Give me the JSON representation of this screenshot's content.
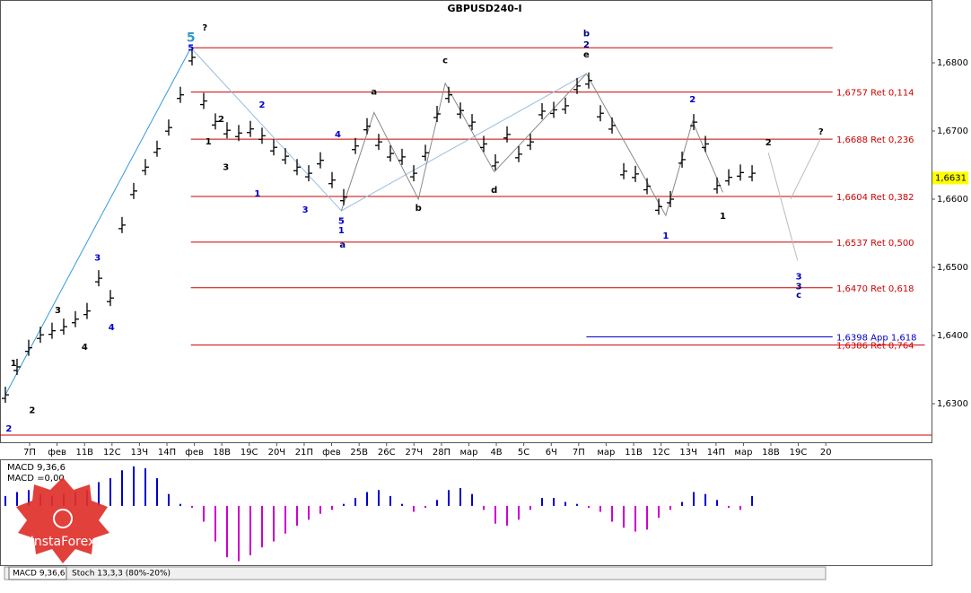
{
  "title": "GBPUSD240-I",
  "watermark": "InstaForex",
  "tabs": [
    "MACD 9,36,6",
    "Stoch 13,3,3 (80%-20%)"
  ],
  "chart_data": [
    {
      "type": "price",
      "color": "#000000",
      "values": [
        1.6313,
        1.6354,
        1.6382,
        1.6401,
        1.6407,
        1.6413,
        1.6424,
        1.6436,
        1.6484,
        1.6455,
        1.6562,
        1.6612,
        1.6647,
        1.6674,
        1.6705,
        1.6753,
        1.6808,
        1.6744,
        1.6714,
        1.6701,
        1.6697,
        1.6703,
        1.6693,
        1.6676,
        1.6663,
        1.6647,
        1.6638,
        1.6657,
        1.6628,
        1.6603,
        1.6678,
        1.6707,
        1.6684,
        1.6667,
        1.6662,
        1.6638,
        1.6668,
        1.6725,
        1.6753,
        1.673,
        1.6713,
        1.6681,
        1.6654,
        1.6695,
        1.6666,
        1.6684,
        1.6729,
        1.6731,
        1.6737,
        1.6766,
        1.6774,
        1.6726,
        1.6708,
        1.6641,
        1.6637,
        1.6619,
        1.6589,
        1.66,
        1.6658,
        1.6713,
        1.6681,
        1.662,
        1.6632,
        1.6639,
        1.6638
      ],
      "xlim": [
        -0.46,
        79.38
      ],
      "ylim": [
        1.62434,
        1.68921
      ],
      "yticks": [
        {
          "value": 1.63,
          "label": "1,6300"
        },
        {
          "value": 1.64,
          "label": "1,6400"
        },
        {
          "value": 1.65,
          "label": "1,6500"
        },
        {
          "value": 1.66,
          "label": "1,6600"
        },
        {
          "value": 1.67,
          "label": "1,6700"
        },
        {
          "value": 1.68,
          "label": "1,6800"
        }
      ],
      "xticks": [
        {
          "value": 2.08,
          "label": "7П"
        },
        {
          "value": 4.43,
          "label": "фев"
        },
        {
          "value": 6.79,
          "label": "11В"
        },
        {
          "value": 9.14,
          "label": "12С"
        },
        {
          "value": 11.49,
          "label": "13Ч"
        },
        {
          "value": 13.85,
          "label": "14П"
        },
        {
          "value": 16.2,
          "label": "фев"
        },
        {
          "value": 18.55,
          "label": "18В"
        },
        {
          "value": 20.9,
          "label": "19С"
        },
        {
          "value": 23.26,
          "label": "20Ч"
        },
        {
          "value": 25.61,
          "label": "21П"
        },
        {
          "value": 27.96,
          "label": "фев"
        },
        {
          "value": 30.32,
          "label": "25В"
        },
        {
          "value": 32.67,
          "label": "26С"
        },
        {
          "value": 35.02,
          "label": "27Ч"
        },
        {
          "value": 37.38,
          "label": "28П"
        },
        {
          "value": 39.73,
          "label": "мар"
        },
        {
          "value": 42.08,
          "label": "4В"
        },
        {
          "value": 44.43,
          "label": "5С"
        },
        {
          "value": 46.79,
          "label": "6Ч"
        },
        {
          "value": 49.14,
          "label": "7П"
        },
        {
          "value": 51.49,
          "label": "мар"
        },
        {
          "value": 53.85,
          "label": "11В"
        },
        {
          "value": 56.2,
          "label": "12С"
        },
        {
          "value": 58.55,
          "label": "13Ч"
        },
        {
          "value": 60.91,
          "label": "14П"
        },
        {
          "value": 63.26,
          "label": "мар"
        },
        {
          "value": 65.61,
          "label": "18В"
        },
        {
          "value": 67.96,
          "label": "19С"
        },
        {
          "value": 70.32,
          "label": "20"
        }
      ],
      "current_price": {
        "value": 1.6631,
        "label": "1,6631"
      },
      "levels": [
        {
          "value": 1.6822,
          "color": "#cc0000",
          "from": 15.9,
          "to": 70.9
        },
        {
          "value": 1.6757,
          "label": "1,6757 Ret 0,114",
          "color": "#cc0000",
          "from": 15.9,
          "to": 70.9
        },
        {
          "value": 1.6688,
          "label": "1,6688 Ret 0,236",
          "color": "#cc0000",
          "from": 15.9,
          "to": 70.9
        },
        {
          "value": 1.6604,
          "label": "1,6604 Ret 0,382",
          "color": "#cc0000",
          "from": 15.9,
          "to": 70.9
        },
        {
          "value": 1.6537,
          "label": "1,6537 Ret 0,500",
          "color": "#cc0000",
          "from": 15.9,
          "to": 70.9
        },
        {
          "value": 1.647,
          "label": "1,6470 Ret 0,618",
          "color": "#cc0000",
          "from": 15.9,
          "to": 70.9
        },
        {
          "value": 1.6398,
          "label": "1,6398 App 1,618",
          "color": "#0000cc",
          "from": 49.8,
          "to": 70.9
        },
        {
          "value": 1.6386,
          "label": "1,6386 Ret 0,764",
          "color": "#cc0000",
          "from": 15.9,
          "to": 78.8
        },
        {
          "value": 1.6254,
          "color": "#cc0000",
          "from": -0.46,
          "to": 79.38
        }
      ],
      "trendlines": [
        {
          "color": "#3399dd",
          "points": [
            [
              0,
              1.6313
            ],
            [
              15.9,
              1.6822
            ]
          ]
        },
        {
          "color": "#99bbdd",
          "points": [
            [
              15.9,
              1.6822
            ],
            [
              28.8,
              1.6583
            ],
            [
              49.8,
              1.6784
            ]
          ]
        },
        {
          "color": "#888888",
          "points": [
            [
              28.8,
              1.6583
            ],
            [
              31.6,
              1.6727
            ],
            [
              35.4,
              1.66
            ],
            [
              37.7,
              1.677
            ],
            [
              41.9,
              1.664
            ],
            [
              49.8,
              1.6784
            ],
            [
              56.6,
              1.6576
            ],
            [
              58.9,
              1.6714
            ],
            [
              61.5,
              1.661
            ]
          ]
        },
        {
          "color": "#bbbbbb",
          "points": [
            [
              65.4,
              1.6668
            ],
            [
              67.9,
              1.651
            ]
          ]
        },
        {
          "color": "#bbbbbb",
          "points": [
            [
              67.3,
              1.66
            ],
            [
              69.9,
              1.669
            ]
          ]
        }
      ],
      "annotations": [
        {
          "text": "5",
          "x": 15.9,
          "y": 1.6836,
          "color": "#3399cc",
          "big": true
        },
        {
          "text": "?",
          "x": 17.1,
          "y": 1.6851,
          "color": "#000000"
        },
        {
          "text": "5",
          "x": 15.9,
          "y": 1.6822,
          "color": "#0000cc"
        },
        {
          "text": "2",
          "x": 0.3,
          "y": 1.6263,
          "color": "#0000cc"
        },
        {
          "text": "1",
          "x": 0.7,
          "y": 1.6359,
          "color": "#000000"
        },
        {
          "text": "2",
          "x": 2.3,
          "y": 1.629,
          "color": "#000000"
        },
        {
          "text": "3",
          "x": 4.5,
          "y": 1.6437,
          "color": "#000000"
        },
        {
          "text": "4",
          "x": 6.8,
          "y": 1.6383,
          "color": "#000000"
        },
        {
          "text": "3",
          "x": 7.9,
          "y": 1.6514,
          "color": "#0000cc"
        },
        {
          "text": "4",
          "x": 9.1,
          "y": 1.6412,
          "color": "#0000cc"
        },
        {
          "text": "2",
          "x": 18.5,
          "y": 1.6717,
          "color": "#000000"
        },
        {
          "text": "1",
          "x": 17.4,
          "y": 1.6684,
          "color": "#000000"
        },
        {
          "text": "3",
          "x": 18.9,
          "y": 1.6647,
          "color": "#000000"
        },
        {
          "text": "2",
          "x": 22.0,
          "y": 1.6738,
          "color": "#0000cc"
        },
        {
          "text": "1",
          "x": 21.6,
          "y": 1.6608,
          "color": "#0000cc"
        },
        {
          "text": "3",
          "x": 25.7,
          "y": 1.6584,
          "color": "#0000cc"
        },
        {
          "text": "4",
          "x": 28.5,
          "y": 1.6695,
          "color": "#0000cc"
        },
        {
          "text": "5",
          "x": 28.8,
          "y": 1.6568,
          "color": "#0000cc"
        },
        {
          "text": "1",
          "x": 28.8,
          "y": 1.6554,
          "color": "#0000cc"
        },
        {
          "text": "a",
          "x": 28.9,
          "y": 1.6533,
          "color": "#000080"
        },
        {
          "text": "a",
          "x": 31.6,
          "y": 1.6757,
          "color": "#000000"
        },
        {
          "text": "b",
          "x": 35.4,
          "y": 1.6587,
          "color": "#000000"
        },
        {
          "text": "c",
          "x": 37.7,
          "y": 1.6803,
          "color": "#000000"
        },
        {
          "text": "d",
          "x": 41.9,
          "y": 1.6613,
          "color": "#000000"
        },
        {
          "text": "b",
          "x": 49.8,
          "y": 1.6843,
          "color": "#000080"
        },
        {
          "text": "2",
          "x": 49.8,
          "y": 1.6826,
          "color": "#000080"
        },
        {
          "text": "e",
          "x": 49.8,
          "y": 1.6812,
          "color": "#000000"
        },
        {
          "text": "2",
          "x": 58.9,
          "y": 1.6746,
          "color": "#0000cc"
        },
        {
          "text": "1",
          "x": 56.6,
          "y": 1.6546,
          "color": "#0000cc"
        },
        {
          "text": "1",
          "x": 61.5,
          "y": 1.6575,
          "color": "#000000"
        },
        {
          "text": "2",
          "x": 65.4,
          "y": 1.6683,
          "color": "#000000"
        },
        {
          "text": "?",
          "x": 69.9,
          "y": 1.6699,
          "color": "#000000"
        },
        {
          "text": "3",
          "x": 68.0,
          "y": 1.6486,
          "color": "#0000cc"
        },
        {
          "text": "3",
          "x": 68.0,
          "y": 1.6472,
          "color": "#000080"
        },
        {
          "text": "c",
          "x": 68.0,
          "y": 1.6459,
          "color": "#000080"
        }
      ]
    },
    {
      "type": "histogram",
      "label": "MACD 9,36,6",
      "readout": "MACD =0,00",
      "positive_color": "#0000cc",
      "negative_color": "#cc00cc",
      "ylim": [
        -0.003,
        0.00231
      ],
      "values": [
        0.0005,
        0.0007,
        0.0008,
        0.0006,
        0.0005,
        0.0006,
        0.0007,
        0.0008,
        0.0012,
        0.0014,
        0.0018,
        0.002,
        0.0019,
        0.0014,
        0.0006,
        0.0001,
        -0.0001,
        -0.0008,
        -0.0018,
        -0.0026,
        -0.0028,
        -0.0025,
        -0.0021,
        -0.0018,
        -0.0014,
        -0.001,
        -0.0007,
        -0.0004,
        -0.0002,
        0.0001,
        0.0004,
        0.0007,
        0.0008,
        0.0005,
        0.0001,
        -0.0003,
        -0.0001,
        0.0003,
        0.0008,
        0.0009,
        0.0006,
        -0.0002,
        -0.0009,
        -0.001,
        -0.0007,
        -0.0002,
        0.0004,
        0.0004,
        0.0002,
        0.0001,
        -0.0001,
        -0.0003,
        -0.0008,
        -0.0011,
        -0.0013,
        -0.0012,
        -0.0006,
        -0.0002,
        0.0002,
        0.0007,
        0.0006,
        0.0003,
        -0.0001,
        -0.0002,
        0.0005
      ]
    }
  ]
}
